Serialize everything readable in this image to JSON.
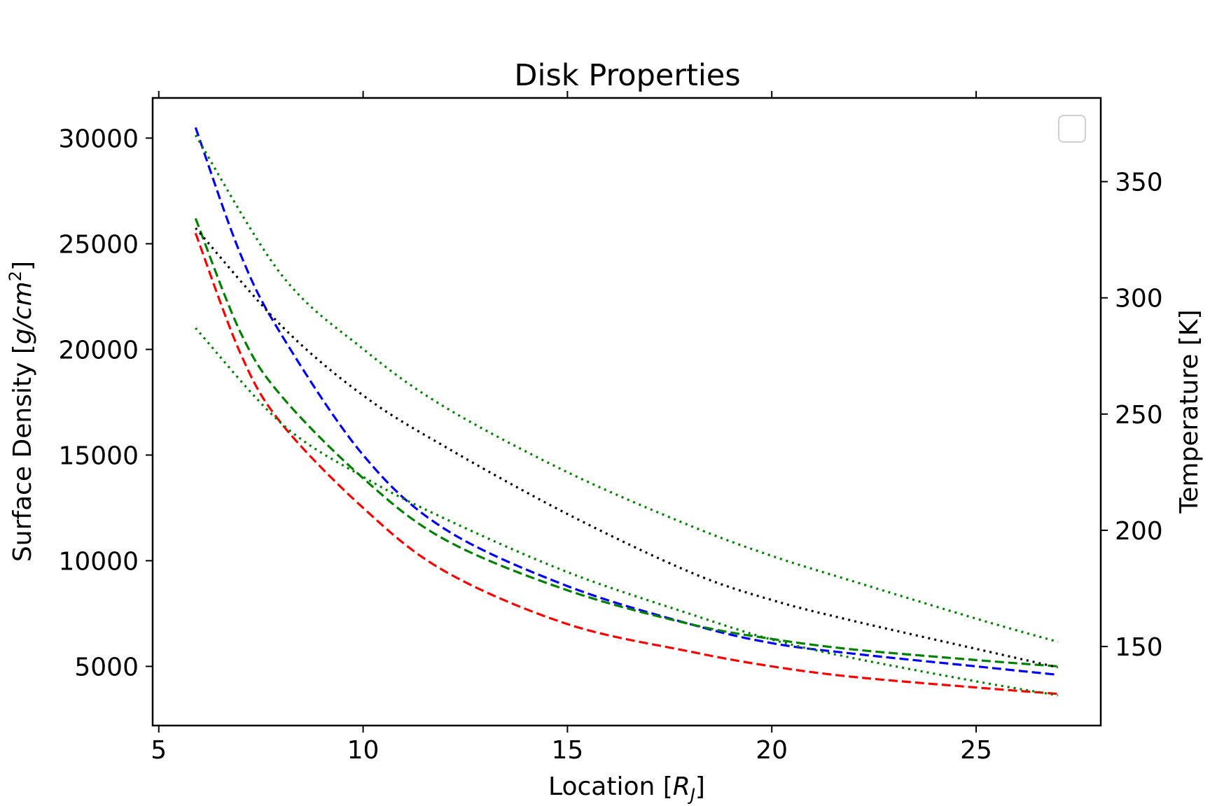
{
  "chart_data": {
    "type": "line",
    "title": "Disk Properties",
    "xlabel": "Location [R_J]",
    "xlabel_parts": {
      "prefix": "Location [",
      "symbol": "R",
      "sub": "J",
      "suffix": "]"
    },
    "ylabel": "Surface Density [g/cm^2]",
    "ylabel_parts": {
      "prefix": "Surface Density [",
      "symbol": "g/cm",
      "sup": "2",
      "suffix": "]"
    },
    "y2label": "Temperature [K]",
    "xlim": [
      4.85,
      28.05
    ],
    "ylim": [
      2200,
      31900
    ],
    "y2lim": [
      116,
      386
    ],
    "x_ticks": [
      5,
      10,
      15,
      20,
      25
    ],
    "y_ticks": [
      5000,
      10000,
      15000,
      20000,
      25000,
      30000
    ],
    "y2_ticks": [
      150,
      200,
      250,
      300,
      350
    ],
    "grid": false,
    "legend": {
      "placement": "top-right",
      "entries": []
    },
    "series": [
      {
        "axis": "left",
        "color": "#0000ff",
        "dash": "dashed",
        "x": [
          5.9,
          7,
          8,
          10,
          12,
          15,
          18,
          20,
          22,
          25,
          27
        ],
        "y": [
          30500,
          24500,
          20700,
          15000,
          11500,
          8800,
          7000,
          6100,
          5600,
          5000,
          4600
        ]
      },
      {
        "axis": "left",
        "color": "#008000",
        "dash": "dashed",
        "x": [
          5.9,
          7,
          8,
          10,
          12,
          15,
          18,
          20,
          22,
          25,
          27
        ],
        "y": [
          26200,
          20800,
          17800,
          13900,
          11000,
          8600,
          7000,
          6300,
          5800,
          5300,
          5000
        ]
      },
      {
        "axis": "left",
        "color": "#ff0000",
        "dash": "dashed",
        "x": [
          5.9,
          7,
          8,
          10,
          12,
          15,
          18,
          20,
          22,
          25,
          27
        ],
        "y": [
          25500,
          19800,
          16500,
          12500,
          9500,
          7000,
          5700,
          5000,
          4500,
          4000,
          3700
        ]
      },
      {
        "axis": "right",
        "color": "#008000",
        "dash": "dotted",
        "x": [
          5.9,
          8,
          10,
          12,
          15,
          18,
          20,
          22,
          25,
          27
        ],
        "y": [
          370,
          310,
          278,
          253,
          225,
          202,
          189,
          178,
          162,
          152
        ]
      },
      {
        "axis": "right",
        "color": "#000000",
        "dash": "dotted",
        "x": [
          5.9,
          8,
          10,
          12,
          15,
          18,
          20,
          22,
          25,
          27
        ],
        "y": [
          330,
          288,
          258,
          236,
          207,
          182,
          170,
          161,
          149,
          141
        ]
      },
      {
        "axis": "right",
        "color": "#008000",
        "dash": "dotted",
        "x": [
          5.9,
          8,
          10,
          12,
          15,
          18,
          20,
          22,
          25,
          27
        ],
        "y": [
          287,
          246,
          223,
          205,
          182,
          164,
          153,
          145,
          135,
          129
        ]
      }
    ]
  }
}
